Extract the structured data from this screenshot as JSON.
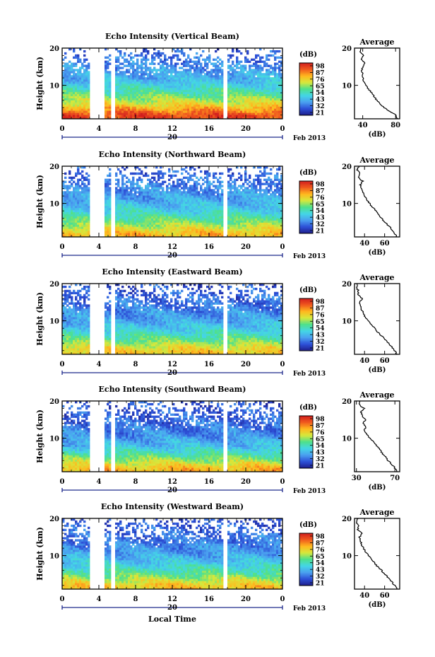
{
  "figure": {
    "xlabel": "Local Time",
    "date_label": "Feb 2013",
    "day_label": "20",
    "ylabel": "Height (km)",
    "cb_unit": "(dB)",
    "colorbar_ticks": [
      "98",
      "87",
      "76",
      "65",
      "54",
      "43",
      "32",
      "21"
    ],
    "colormap": [
      "#1e1e8c",
      "#2d50d7",
      "#4aa0f0",
      "#44d6e6",
      "#4ee08c",
      "#d6e83c",
      "#ffb81e",
      "#f05a1e",
      "#d21e1e"
    ],
    "avg_xlabel": "(dB)"
  },
  "chart_data": [
    {
      "type": "heatmap",
      "title": "Echo Intensity (Vertical Beam)",
      "xlabel": "",
      "ylabel": "Height (km)",
      "x_ticks": [
        "0",
        "4",
        "8",
        "12",
        "16",
        "20",
        "0"
      ],
      "x_range": [
        0,
        24
      ],
      "y_ticks": [
        "20",
        "10"
      ],
      "y_range": [
        1,
        20
      ],
      "color_range": [
        21,
        98
      ],
      "data_gaps_hours": [
        [
          3.1,
          4.6
        ],
        [
          5.4,
          5.8
        ],
        [
          17.5,
          17.9
        ]
      ],
      "intensity_profile": {
        "heights_km": [
          2,
          5,
          8,
          11,
          14,
          17,
          20
        ],
        "values_db": [
          92,
          72,
          58,
          46,
          40,
          36,
          32
        ]
      },
      "average": {
        "title": "Average",
        "xlabel": "(dB)",
        "x_ticks": [
          "40",
          "80"
        ],
        "xlim": [
          30,
          85
        ],
        "heights_km": [
          1,
          2,
          3,
          4,
          5,
          6,
          7,
          8,
          9,
          10,
          11,
          12,
          13,
          14,
          15,
          16,
          17,
          18,
          19,
          20
        ],
        "values_db": [
          82,
          80,
          73,
          66,
          61,
          57,
          54,
          51,
          47,
          44,
          41,
          40,
          40,
          39,
          40,
          42,
          38,
          41,
          37,
          38
        ]
      }
    },
    {
      "type": "heatmap",
      "title": "Echo Intensity (Northward Beam)",
      "xlabel": "",
      "ylabel": "Height (km)",
      "x_ticks": [
        "0",
        "4",
        "8",
        "12",
        "16",
        "20",
        "0"
      ],
      "x_range": [
        0,
        24
      ],
      "y_ticks": [
        "20",
        "10"
      ],
      "y_range": [
        1,
        20
      ],
      "color_range": [
        21,
        98
      ],
      "data_gaps_hours": [
        [
          3.1,
          4.6
        ],
        [
          5.4,
          5.8
        ],
        [
          17.5,
          17.9
        ]
      ],
      "intensity_profile": {
        "heights_km": [
          2,
          5,
          8,
          11,
          14,
          17,
          20
        ],
        "values_db": [
          78,
          62,
          50,
          42,
          38,
          35,
          31
        ]
      },
      "average": {
        "title": "Average",
        "xlabel": "(dB)",
        "x_ticks": [
          "40",
          "60"
        ],
        "xlim": [
          30,
          75
        ],
        "heights_km": [
          1,
          2,
          3,
          4,
          5,
          6,
          7,
          8,
          9,
          10,
          11,
          12,
          13,
          14,
          15,
          16,
          17,
          18,
          19,
          20
        ],
        "values_db": [
          72,
          70,
          67,
          64,
          60,
          57,
          54,
          51,
          48,
          45,
          42,
          40,
          38,
          37,
          36,
          38,
          34,
          35,
          33,
          34
        ]
      }
    },
    {
      "type": "heatmap",
      "title": "Echo Intensity (Eastward Beam)",
      "xlabel": "",
      "ylabel": "Height (km)",
      "x_ticks": [
        "0",
        "4",
        "8",
        "12",
        "16",
        "20",
        "0"
      ],
      "x_range": [
        0,
        24
      ],
      "y_ticks": [
        "20",
        "10"
      ],
      "y_range": [
        1,
        20
      ],
      "color_range": [
        21,
        98
      ],
      "data_gaps_hours": [
        [
          3.1,
          4.6
        ],
        [
          5.4,
          5.8
        ],
        [
          17.5,
          17.9
        ]
      ],
      "intensity_profile": {
        "heights_km": [
          2,
          5,
          8,
          11,
          14,
          17,
          20
        ],
        "values_db": [
          76,
          60,
          48,
          40,
          36,
          33,
          30
        ]
      },
      "average": {
        "title": "Average",
        "xlabel": "(dB)",
        "x_ticks": [
          "40",
          "60"
        ],
        "xlim": [
          30,
          75
        ],
        "heights_km": [
          1,
          2,
          3,
          4,
          5,
          6,
          7,
          8,
          9,
          10,
          11,
          12,
          13,
          14,
          15,
          16,
          17,
          18,
          19,
          20
        ],
        "values_db": [
          72,
          70,
          67,
          64,
          60,
          57,
          53,
          50,
          47,
          44,
          41,
          39,
          37,
          36,
          35,
          38,
          33,
          34,
          32,
          33
        ]
      }
    },
    {
      "type": "heatmap",
      "title": "Echo Intensity (Southward Beam)",
      "xlabel": "",
      "ylabel": "Height (km)",
      "x_ticks": [
        "0",
        "4",
        "8",
        "12",
        "16",
        "20",
        "0"
      ],
      "x_range": [
        0,
        24
      ],
      "y_ticks": [
        "20",
        "10"
      ],
      "y_range": [
        1,
        20
      ],
      "color_range": [
        21,
        98
      ],
      "data_gaps_hours": [
        [
          3.1,
          4.6
        ],
        [
          5.4,
          5.8
        ],
        [
          17.5,
          17.9
        ]
      ],
      "intensity_profile": {
        "heights_km": [
          2,
          5,
          8,
          11,
          14,
          17,
          20
        ],
        "values_db": [
          78,
          60,
          46,
          38,
          34,
          32,
          30
        ]
      },
      "average": {
        "title": "Average",
        "xlabel": "(dB)",
        "x_ticks": [
          "30",
          "70"
        ],
        "xlim": [
          28,
          75
        ],
        "heights_km": [
          1,
          2,
          3,
          4,
          5,
          6,
          7,
          8,
          9,
          10,
          11,
          12,
          13,
          14,
          15,
          16,
          17,
          18,
          19,
          20
        ],
        "values_db": [
          72,
          70,
          67,
          63,
          60,
          57,
          54,
          51,
          48,
          44,
          41,
          38,
          40,
          37,
          40,
          36,
          35,
          38,
          33,
          34
        ]
      }
    },
    {
      "type": "heatmap",
      "title": "Echo Intensity (Westward Beam)",
      "xlabel": "Local Time",
      "ylabel": "Height (km)",
      "x_ticks": [
        "0",
        "4",
        "8",
        "12",
        "16",
        "20",
        "0"
      ],
      "x_range": [
        0,
        24
      ],
      "y_ticks": [
        "20",
        "10"
      ],
      "y_range": [
        1,
        20
      ],
      "color_range": [
        21,
        98
      ],
      "data_gaps_hours": [
        [
          3.1,
          4.6
        ],
        [
          5.4,
          5.8
        ],
        [
          17.5,
          17.9
        ]
      ],
      "intensity_profile": {
        "heights_km": [
          2,
          5,
          8,
          11,
          14,
          17,
          20
        ],
        "values_db": [
          76,
          60,
          48,
          40,
          36,
          33,
          30
        ]
      },
      "average": {
        "title": "Average",
        "xlabel": "(dB)",
        "x_ticks": [
          "40",
          "60"
        ],
        "xlim": [
          30,
          75
        ],
        "heights_km": [
          1,
          2,
          3,
          4,
          5,
          6,
          7,
          8,
          9,
          10,
          11,
          12,
          13,
          14,
          15,
          16,
          17,
          18,
          19,
          20
        ],
        "values_db": [
          72,
          70,
          67,
          64,
          60,
          57,
          53,
          50,
          47,
          44,
          41,
          39,
          37,
          36,
          35,
          38,
          33,
          34,
          32,
          33
        ]
      }
    }
  ]
}
